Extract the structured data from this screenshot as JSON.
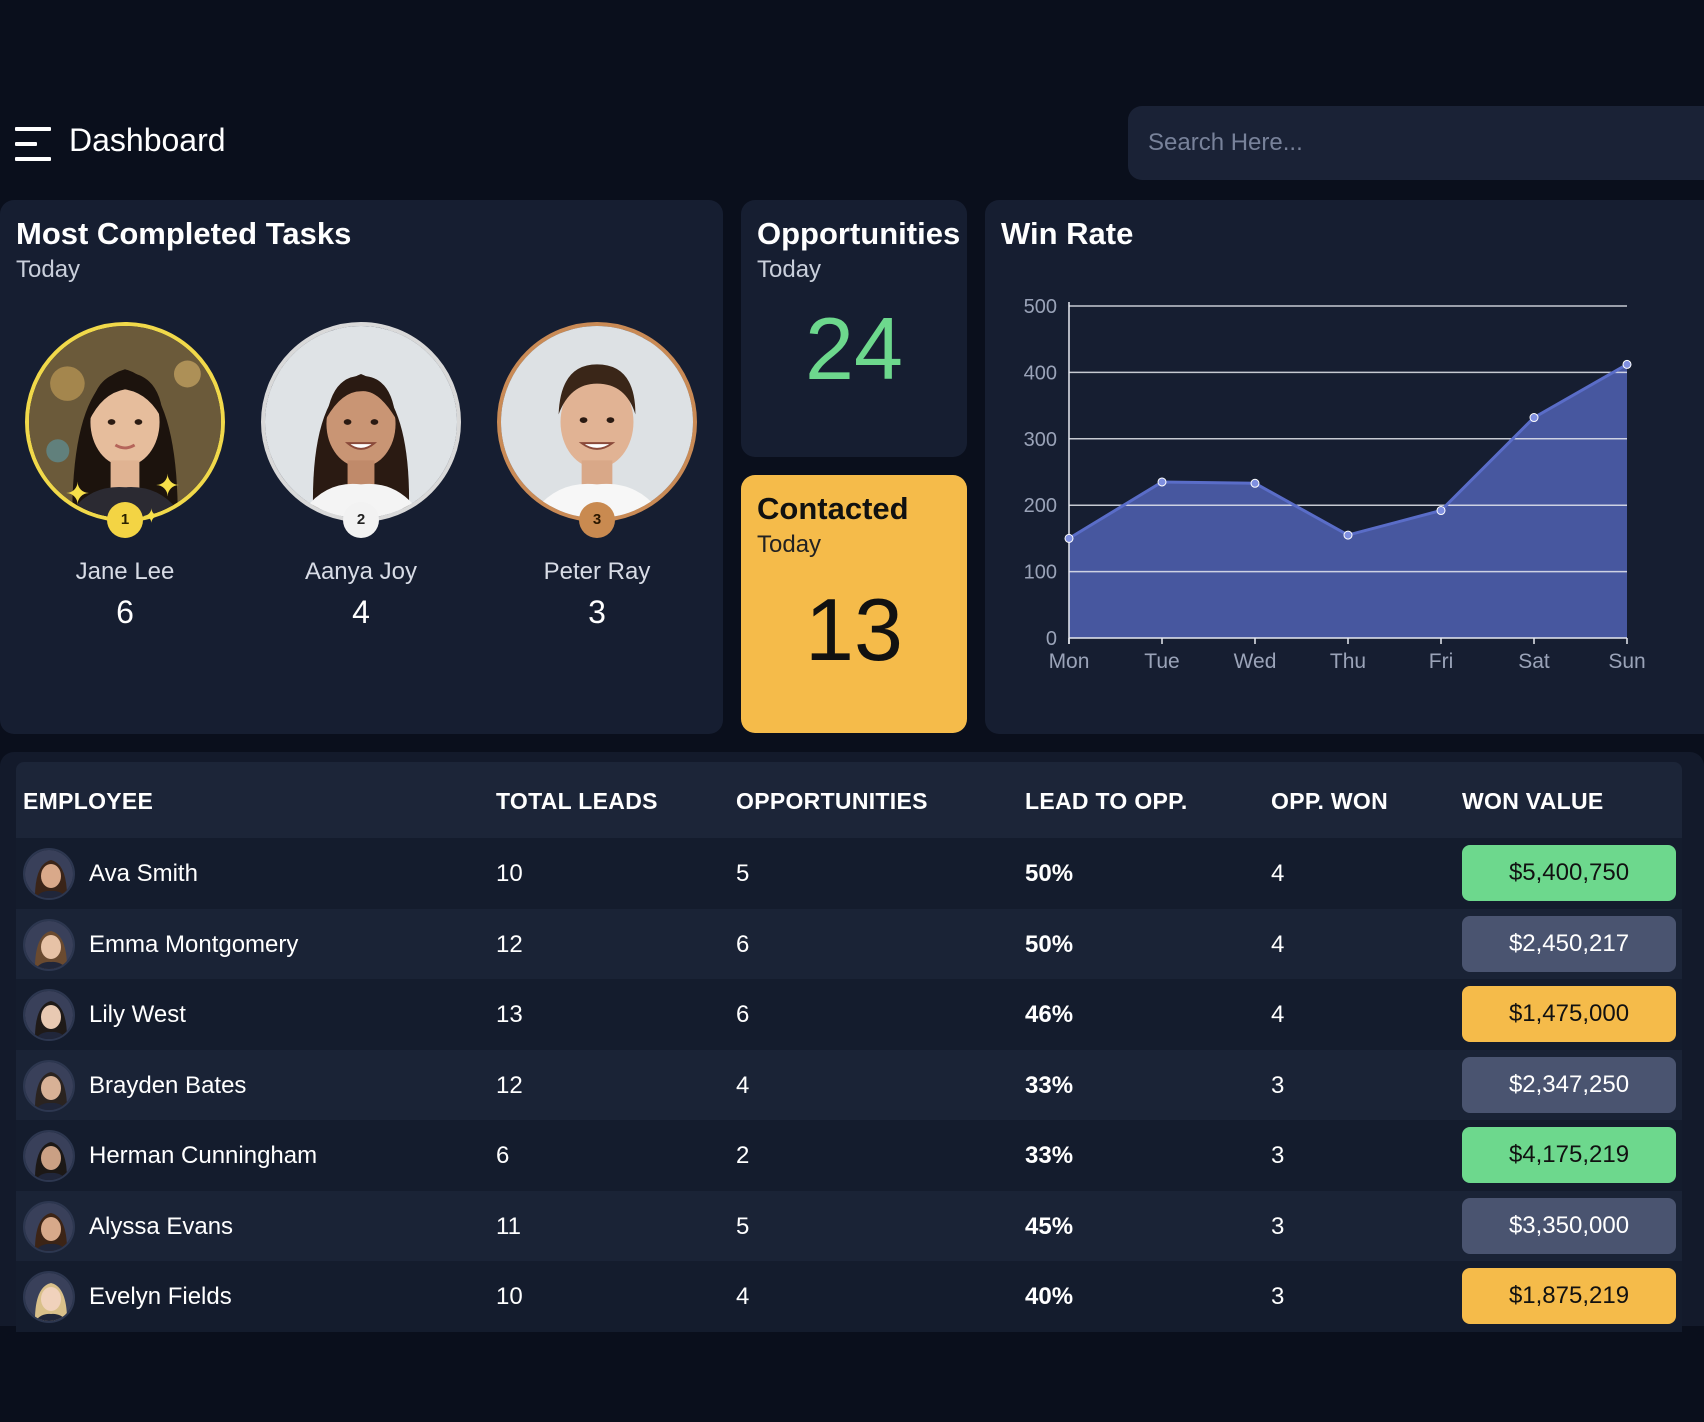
{
  "header": {
    "title": "Dashboard",
    "search_placeholder": "Search Here..."
  },
  "tasks": {
    "title": "Most Completed Tasks",
    "subtitle": "Today",
    "people": [
      {
        "rank": "1",
        "name": "Jane Lee",
        "count": "6"
      },
      {
        "rank": "2",
        "name": "Aanya Joy",
        "count": "4"
      },
      {
        "rank": "3",
        "name": "Peter Ray",
        "count": "3"
      }
    ]
  },
  "opportunities": {
    "title": "Opportunities",
    "subtitle": "Today",
    "value": "24"
  },
  "contacted": {
    "title": "Contacted",
    "subtitle": "Today",
    "value": "13"
  },
  "winrate": {
    "title": "Win Rate"
  },
  "chart_data": {
    "type": "area",
    "title": "Win Rate",
    "categories": [
      "Mon",
      "Tue",
      "Wed",
      "Thu",
      "Fri",
      "Sat",
      "Sun"
    ],
    "values": [
      150,
      235,
      233,
      155,
      192,
      332,
      412
    ],
    "y_ticks": [
      "0",
      "100",
      "200",
      "300",
      "400",
      "500"
    ],
    "ylim": [
      0,
      500
    ],
    "grid": true,
    "color": "#47579f"
  },
  "table": {
    "headers": {
      "employee": "EMPLOYEE",
      "total_leads": "TOTAL LEADS",
      "opportunities": "OPPORTUNITIES",
      "lead_to_opp": "LEAD TO OPP.",
      "opp_won": "OPP. WON",
      "won_value": "WON VALUE"
    },
    "rows": [
      {
        "name": "Ava Smith",
        "leads": "10",
        "opps": "5",
        "lto": "50%",
        "won": "4",
        "value": "$5,400,750",
        "tier": "green"
      },
      {
        "name": "Emma Montgomery",
        "leads": "12",
        "opps": "6",
        "lto": "50%",
        "won": "4",
        "value": "$2,450,217",
        "tier": "gray"
      },
      {
        "name": "Lily West",
        "leads": "13",
        "opps": "6",
        "lto": "46%",
        "won": "4",
        "value": "$1,475,000",
        "tier": "yellow"
      },
      {
        "name": "Brayden Bates",
        "leads": "12",
        "opps": "4",
        "lto": "33%",
        "won": "3",
        "value": "$2,347,250",
        "tier": "gray"
      },
      {
        "name": "Herman Cunningham",
        "leads": "6",
        "opps": "2",
        "lto": "33%",
        "won": "3",
        "value": "$4,175,219",
        "tier": "green"
      },
      {
        "name": "Alyssa Evans",
        "leads": "11",
        "opps": "5",
        "lto": "45%",
        "won": "3",
        "value": "$3,350,000",
        "tier": "gray"
      },
      {
        "name": "Evelyn Fields",
        "leads": "10",
        "opps": "4",
        "lto": "40%",
        "won": "3",
        "value": "$1,875,219",
        "tier": "yellow"
      }
    ]
  },
  "colors": {
    "green": "#6dd88d",
    "gray": "#4a5470",
    "yellow": "#f5bb4a"
  }
}
